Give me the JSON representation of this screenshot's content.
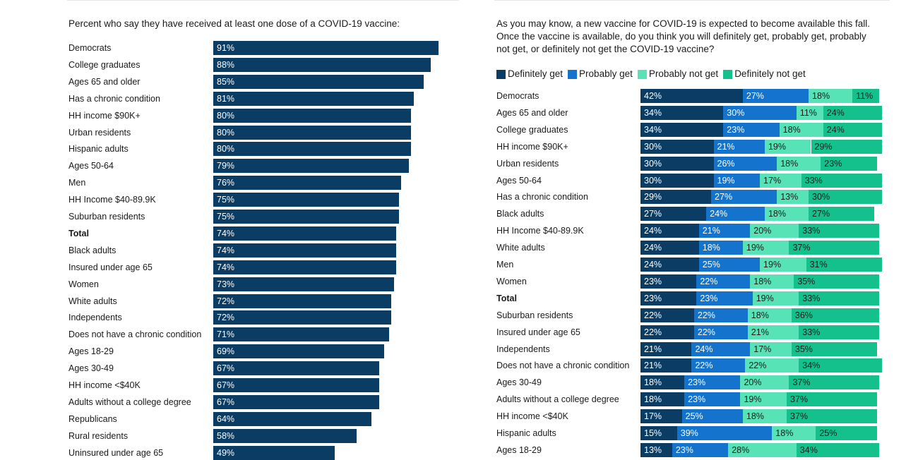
{
  "colors": {
    "single_bar": "#0b3c64",
    "definitely_get": "#0b3c64",
    "probably_get": "#1473cc",
    "probably_not_get": "#57e3b5",
    "definitely_not_get": "#14c08c"
  },
  "chart_data": [
    {
      "type": "bar",
      "orientation": "horizontal",
      "title": "Percent who say they have received at least one dose of a COVID-19 vaccine:",
      "xlim": [
        0,
        100
      ],
      "grid": false,
      "categories": [
        "Democrats",
        "College graduates",
        "Ages 65 and older",
        "Has a chronic condition",
        "HH income $90K+",
        "Urban residents",
        "Hispanic adults",
        "Ages 50-64",
        "Men",
        "HH Income $40-89.9K",
        "Suburban residents",
        "Total",
        "Black adults",
        "Insured under age 65",
        "Women",
        "White adults",
        "Independents",
        "Does not have a chronic condition",
        "Ages 18-29",
        "Ages 30-49",
        "HH income <$40K",
        "Adults without a college degree",
        "Republicans",
        "Rural residents",
        "Uninsured under age 65"
      ],
      "values": [
        91,
        88,
        85,
        81,
        80,
        80,
        80,
        79,
        76,
        75,
        75,
        74,
        74,
        74,
        73,
        72,
        72,
        71,
        69,
        67,
        67,
        67,
        64,
        58,
        49
      ],
      "value_labels": [
        "91%",
        "88%",
        "85%",
        "81%",
        "80%",
        "80%",
        "80%",
        "79%",
        "76%",
        "75%",
        "75%",
        "74%",
        "74%",
        "74%",
        "73%",
        "72%",
        "72%",
        "71%",
        "69%",
        "67%",
        "67%",
        "67%",
        "64%",
        "58%",
        "49%"
      ],
      "bold_categories": [
        "Total"
      ]
    },
    {
      "type": "bar",
      "orientation": "horizontal",
      "stacked": true,
      "title": "As you may know, a new vaccine for COVID-19 is expected to become available this fall. Once the vaccine is available, do you think you will definitely get, probably get, probably not get, or definitely not get the COVID-19 vaccine?",
      "legend_position": "top-left",
      "xlim": [
        0,
        100
      ],
      "grid": false,
      "categories": [
        "Democrats",
        "Ages 65 and older",
        "College graduates",
        "HH income $90K+",
        "Urban residents",
        "Ages 50-64",
        "Has a chronic condition",
        "Black adults",
        "HH Income $40-89.9K",
        "White adults",
        "Men",
        "Women",
        "Total",
        "Suburban residents",
        "Insured under age 65",
        "Independents",
        "Does not have a chronic condition",
        "Ages 30-49",
        "Adults without a college degree",
        "HH income <$40K",
        "Hispanic adults",
        "Ages 18-29"
      ],
      "bold_categories": [
        "Total"
      ],
      "series": [
        {
          "name": "Definitely get",
          "values": [
            42,
            34,
            34,
            30,
            30,
            30,
            29,
            27,
            24,
            24,
            24,
            23,
            23,
            22,
            22,
            21,
            21,
            18,
            18,
            17,
            15,
            13
          ],
          "labels": [
            "42%",
            "34%",
            "34%",
            "30%",
            "30%",
            "30%",
            "29%",
            "27%",
            "24%",
            "24%",
            "24%",
            "23%",
            "23%",
            "22%",
            "22%",
            "21%",
            "21%",
            "18%",
            "18%",
            "17%",
            "15%",
            "13%"
          ]
        },
        {
          "name": "Probably get",
          "values": [
            27,
            30,
            23,
            21,
            26,
            19,
            27,
            24,
            21,
            18,
            25,
            22,
            23,
            22,
            22,
            24,
            22,
            23,
            23,
            25,
            39,
            23
          ],
          "labels": [
            "27%",
            "30%",
            "23%",
            "21%",
            "26%",
            "19%",
            "27%",
            "24%",
            "21%",
            "18%",
            "25%",
            "22%",
            "23%",
            "22%",
            "22%",
            "24%",
            "22%",
            "23%",
            "23%",
            "25%",
            "39%",
            "23%"
          ]
        },
        {
          "name": "Probably not get",
          "values": [
            18,
            11,
            18,
            19,
            18,
            17,
            13,
            18,
            20,
            19,
            19,
            18,
            19,
            18,
            21,
            17,
            22,
            20,
            19,
            18,
            18,
            28
          ],
          "labels": [
            "18%",
            "11%",
            "18%",
            "19%",
            "18%",
            "17%",
            "13%",
            "18%",
            "20%",
            "19%",
            "19%",
            "18%",
            "19%",
            "18%",
            "21%",
            "17%",
            "22%",
            "20%",
            "19%",
            "18%",
            "18%",
            "28%"
          ]
        },
        {
          "name": "Definitely not get",
          "values": [
            11,
            24,
            24,
            29,
            23,
            33,
            30,
            27,
            33,
            37,
            31,
            35,
            33,
            36,
            33,
            35,
            34,
            37,
            37,
            37,
            25,
            34
          ],
          "labels": [
            "11%",
            "24%",
            "24%",
            "29%",
            "23%",
            "33%",
            "30%",
            "27%",
            "33%",
            "37%",
            "31%",
            "35%",
            "33%",
            "36%",
            "33%",
            "35%",
            "34%",
            "37%",
            "37%",
            "37%",
            "25%",
            "34%"
          ]
        }
      ]
    }
  ]
}
